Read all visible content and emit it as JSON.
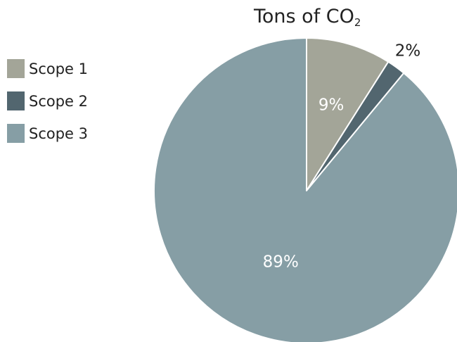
{
  "chart_data": {
    "type": "pie",
    "title": "Tons of CO",
    "title_subscript": "2",
    "slices": [
      {
        "label": "Scope 1",
        "value": 9,
        "data_label": "9%",
        "color": "#a3a598",
        "label_color": "#ffffff"
      },
      {
        "label": "Scope 2",
        "value": 2,
        "data_label": "2%",
        "color": "#52666f",
        "label_color": "#222222"
      },
      {
        "label": "Scope 3",
        "value": 89,
        "data_label": "89%",
        "color": "#869ea5",
        "label_color": "#ffffff"
      }
    ],
    "legend": "left",
    "start_angle": "12 o'clock, clockwise"
  }
}
